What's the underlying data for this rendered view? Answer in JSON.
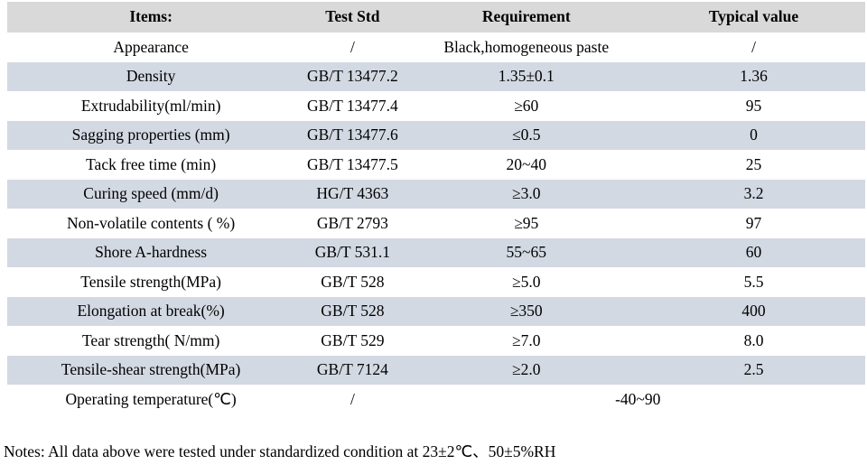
{
  "colors": {
    "page_bg": "#ffffff",
    "header_bg": "#d9d9d9",
    "stripe_bg": "#d3d9e3",
    "text": "#000000"
  },
  "table": {
    "columns": [
      "Items:",
      "Test Std",
      "Requirement",
      "Typical value"
    ],
    "rows": [
      {
        "item": "Appearance",
        "std": "/",
        "req": "Black,homogeneous paste",
        "typical": "/"
      },
      {
        "item": "Density",
        "std": "GB/T 13477.2",
        "req": "1.35±0.1",
        "typical": "1.36"
      },
      {
        "item": "Extrudability(ml/min)",
        "std": "GB/T 13477.4",
        "req": "≥60",
        "typical": "95"
      },
      {
        "item": "Sagging properties (mm)",
        "std": "GB/T 13477.6",
        "req": "≤0.5",
        "typical": "0"
      },
      {
        "item": "Tack free time (min)",
        "std": "GB/T 13477.5",
        "req": "20~40",
        "typical": "25"
      },
      {
        "item": "Curing speed (mm/d)",
        "std": "HG/T 4363",
        "req": "≥3.0",
        "typical": "3.2"
      },
      {
        "item": "Non-volatile contents ( %)",
        "std": "GB/T 2793",
        "req": "≥95",
        "typical": "97"
      },
      {
        "item": "Shore A-hardness",
        "std": "GB/T 531.1",
        "req": "55~65",
        "typical": "60"
      },
      {
        "item": "Tensile strength(MPa)",
        "std": "GB/T 528",
        "req": "≥5.0",
        "typical": "5.5"
      },
      {
        "item": "Elongation at break(%)",
        "std": "GB/T 528",
        "req": "≥350",
        "typical": "400"
      },
      {
        "item": "Tear strength( N/mm)",
        "std": "GB/T 529",
        "req": "≥7.0",
        "typical": "8.0"
      },
      {
        "item": "Tensile-shear strength(MPa)",
        "std": "GB/T 7124",
        "req": "≥2.0",
        "typical": "2.5"
      },
      {
        "item": "Operating temperature(℃)",
        "std": "/",
        "req": "-40~90",
        "merged_req_typical": true
      }
    ]
  },
  "notes": {
    "text": "Notes: All data above were tested under standardized condition at 23±2℃、50±5%RH"
  }
}
